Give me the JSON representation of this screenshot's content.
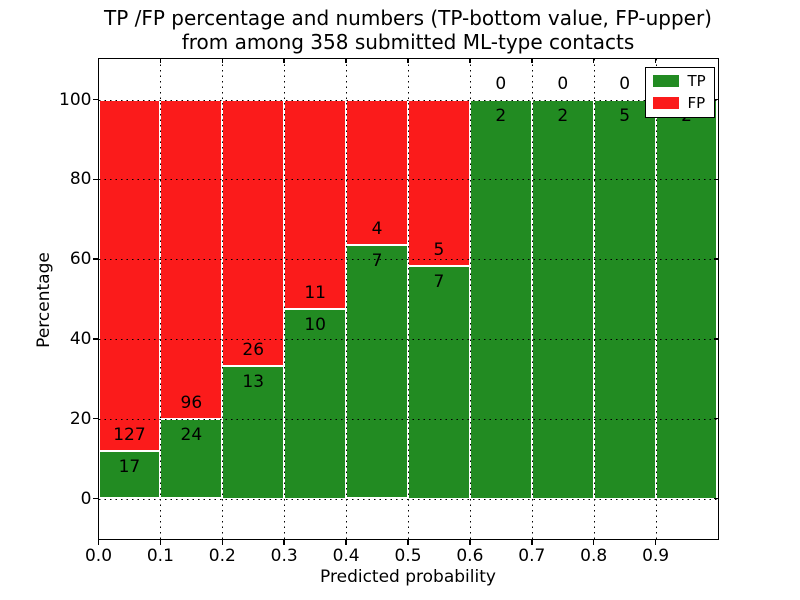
{
  "chart_data": {
    "type": "bar",
    "stacked": true,
    "normalized_to_percent": true,
    "title_lines": [
      "TP /FP percentage and numbers (TP-bottom value, FP-upper)",
      "from among 358 submitted ML-type contacts"
    ],
    "xlabel": "Predicted probability",
    "ylabel": "Percentage",
    "total_contacts": 358,
    "bin_edges": [
      0.0,
      0.1,
      0.2,
      0.3,
      0.4,
      0.5,
      0.6,
      0.7,
      0.8,
      0.9,
      1.0
    ],
    "series": [
      {
        "name": "TP",
        "color": "#228b22",
        "counts": [
          17,
          24,
          13,
          10,
          7,
          7,
          2,
          2,
          5,
          2
        ]
      },
      {
        "name": "FP",
        "color": "#fb1b1b",
        "counts": [
          127,
          96,
          26,
          11,
          4,
          5,
          0,
          0,
          0,
          0
        ]
      }
    ],
    "tp_percent": [
      11.8,
      20.0,
      33.3,
      47.6,
      63.6,
      58.3,
      100.0,
      100.0,
      100.0,
      100.0
    ],
    "xticks": [
      "0.0",
      "0.1",
      "0.2",
      "0.3",
      "0.4",
      "0.5",
      "0.6",
      "0.7",
      "0.8",
      "0.9"
    ],
    "yticks": [
      0,
      20,
      40,
      60,
      80,
      100
    ],
    "xlim": [
      0.0,
      1.0
    ],
    "ylim": [
      -10,
      110
    ],
    "grid": {
      "style": "dotted",
      "color": "#000000"
    },
    "bar_edge_color": "#ffffff",
    "legend_position": "upper right"
  }
}
